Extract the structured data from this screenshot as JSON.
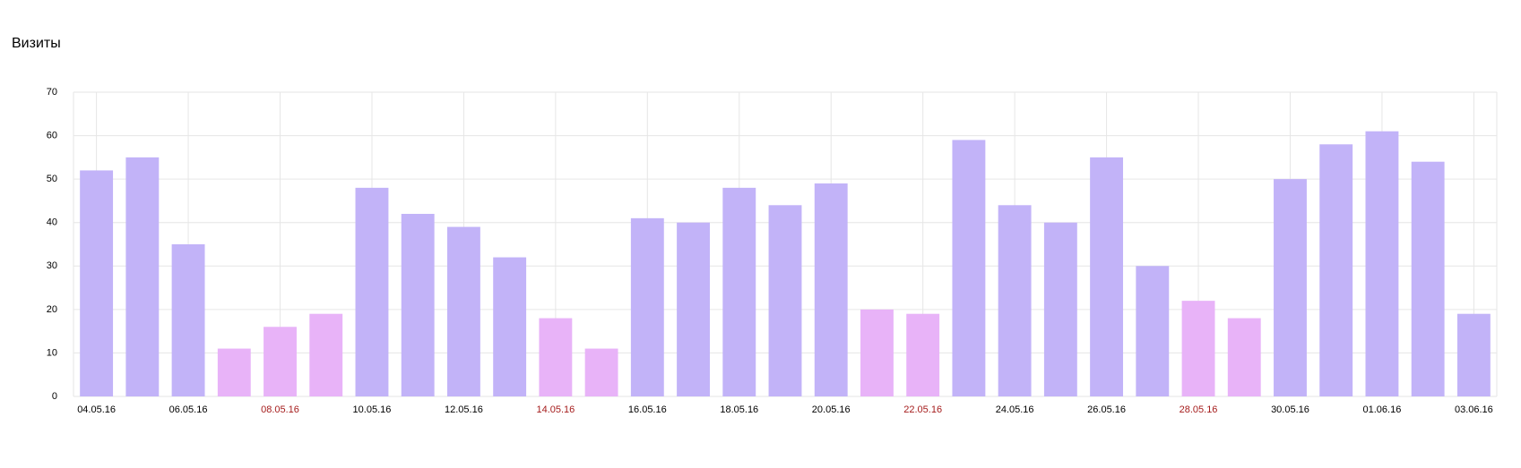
{
  "chart_data": {
    "type": "bar",
    "title": "Визиты",
    "categories": [
      "04.05.16",
      null,
      "06.05.16",
      null,
      "08.05.16",
      null,
      "10.05.16",
      null,
      "12.05.16",
      null,
      "14.05.16",
      null,
      "16.05.16",
      null,
      "18.05.16",
      null,
      "20.05.16",
      null,
      "22.05.16",
      null,
      "24.05.16",
      null,
      "26.05.16",
      null,
      "28.05.16",
      null,
      "30.05.16",
      null,
      "01.06.16",
      null,
      "03.06.16"
    ],
    "values": [
      52,
      55,
      35,
      11,
      16,
      19,
      48,
      42,
      39,
      32,
      18,
      11,
      41,
      40,
      48,
      44,
      49,
      20,
      19,
      59,
      44,
      40,
      55,
      30,
      22,
      18,
      50,
      58,
      61,
      54,
      19
    ],
    "colors": [
      "#c2b3f8",
      "#c2b3f8",
      "#c2b3f8",
      "#e8b3f8",
      "#e8b3f8",
      "#e8b3f8",
      "#c2b3f8",
      "#c2b3f8",
      "#c2b3f8",
      "#c2b3f8",
      "#e8b3f8",
      "#e8b3f8",
      "#c2b3f8",
      "#c2b3f8",
      "#c2b3f8",
      "#c2b3f8",
      "#c2b3f8",
      "#e8b3f8",
      "#e8b3f8",
      "#c2b3f8",
      "#c2b3f8",
      "#c2b3f8",
      "#c2b3f8",
      "#c2b3f8",
      "#e8b3f8",
      "#e8b3f8",
      "#c2b3f8",
      "#c2b3f8",
      "#c2b3f8",
      "#c2b3f8",
      "#c2b3f8"
    ],
    "tick_label_colors": [
      "#000000",
      "#000000",
      "#000000",
      "#a51c1c",
      "#a51c1c",
      "#a51c1c",
      "#000000",
      "#000000",
      "#000000",
      "#000000",
      "#a51c1c",
      "#a51c1c",
      "#000000",
      "#000000",
      "#000000",
      "#000000",
      "#000000",
      "#a51c1c",
      "#a51c1c",
      "#000000",
      "#000000",
      "#000000",
      "#000000",
      "#000000",
      "#a51c1c",
      "#a51c1c",
      "#000000",
      "#000000",
      "#000000",
      "#000000",
      "#000000"
    ],
    "ylim": [
      0,
      70
    ],
    "yticks": [
      0,
      10,
      20,
      30,
      40,
      50,
      60,
      70
    ],
    "grid": true
  }
}
